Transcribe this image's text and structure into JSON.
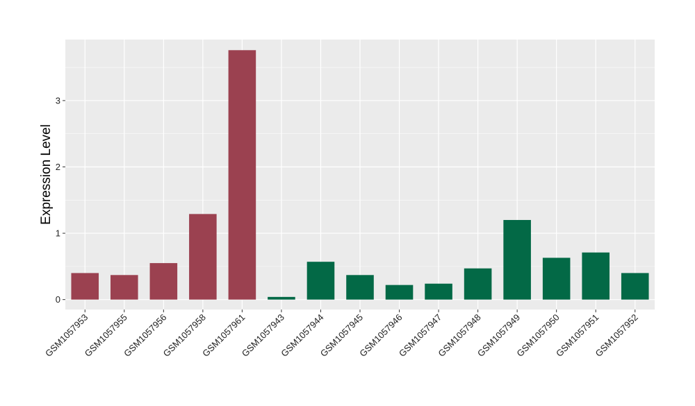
{
  "chart_data": {
    "type": "bar",
    "title": "",
    "xlabel": "",
    "ylabel": "Expression Level",
    "ylim": [
      -0.15,
      3.92
    ],
    "yticks": [
      0,
      1,
      2,
      3
    ],
    "grid": true,
    "legend": "none",
    "colors": {
      "panel_background": "#ebebeb",
      "grid_major": "#ffffff",
      "group_a": "#9b4150",
      "group_b": "#036946",
      "axis_text": "#222222"
    },
    "categories": [
      "GSM1057953",
      "GSM1057955",
      "GSM1057956",
      "GSM1057958",
      "GSM1057961",
      "GSM1057943",
      "GSM1057944",
      "GSM1057945",
      "GSM1057946",
      "GSM1057947",
      "GSM1057948",
      "GSM1057949",
      "GSM1057950",
      "GSM1057951",
      "GSM1057952"
    ],
    "values": [
      0.4,
      0.37,
      0.55,
      1.29,
      3.76,
      0.04,
      0.57,
      0.37,
      0.22,
      0.24,
      0.47,
      1.2,
      0.63,
      0.71,
      0.4
    ],
    "bar_group": [
      "a",
      "a",
      "a",
      "a",
      "a",
      "b",
      "b",
      "b",
      "b",
      "b",
      "b",
      "b",
      "b",
      "b",
      "b"
    ]
  }
}
